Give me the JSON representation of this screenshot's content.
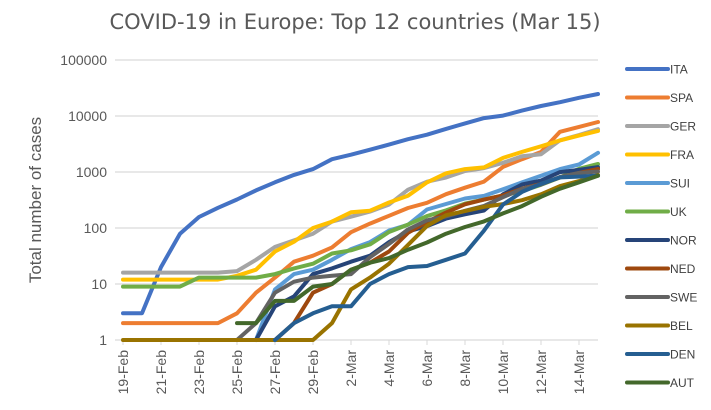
{
  "chart_data": {
    "type": "line",
    "title": "COVID-19 in Europe: Top 12 countries (Mar 15)",
    "xlabel": "",
    "ylabel": "Total number of cases",
    "yscale": "log",
    "ylim": [
      1,
      100000
    ],
    "yticks": [
      "1",
      "10",
      "100",
      "1000",
      "10000",
      "100000"
    ],
    "grid": true,
    "legend": "right",
    "x": [
      "19-Feb",
      "20-Feb",
      "21-Feb",
      "22-Feb",
      "23-Feb",
      "24-Feb",
      "25-Feb",
      "26-Feb",
      "27-Feb",
      "28-Feb",
      "29-Feb",
      "1-Mar",
      "2-Mar",
      "3-Mar",
      "4-Mar",
      "5-Mar",
      "6-Mar",
      "7-Mar",
      "8-Mar",
      "9-Mar",
      "10-Mar",
      "11-Mar",
      "12-Mar",
      "13-Mar",
      "14-Mar",
      "15-Mar"
    ],
    "xtick_labels": [
      "19-Feb",
      "21-Feb",
      "23-Feb",
      "25-Feb",
      "27-Feb",
      "29-Feb",
      "2-Mar",
      "4-Mar",
      "6-Mar",
      "8-Mar",
      "10-Mar",
      "12-Mar",
      "14-Mar"
    ],
    "series": [
      {
        "name": "ITA",
        "color": "#4472C4",
        "values": [
          3,
          3,
          20,
          79,
          157,
          229,
          323,
          470,
          655,
          889,
          1128,
          1694,
          2036,
          2502,
          3089,
          3858,
          4636,
          5883,
          7375,
          9172,
          10149,
          12462,
          15113,
          17660,
          21157,
          24747
        ]
      },
      {
        "name": "SPA",
        "color": "#ED7D31",
        "values": [
          2,
          2,
          2,
          2,
          2,
          2,
          3,
          7,
          13,
          25,
          32,
          45,
          84,
          120,
          165,
          228,
          282,
          401,
          525,
          674,
          1231,
          1695,
          2277,
          5232,
          6391,
          7798
        ]
      },
      {
        "name": "GER",
        "color": "#A5A5A5",
        "values": [
          16,
          16,
          16,
          16,
          16,
          16,
          17,
          27,
          46,
          60,
          79,
          130,
          159,
          196,
          262,
          482,
          670,
          799,
          1040,
          1176,
          1457,
          1908,
          2078,
          3675,
          4585,
          5813
        ]
      },
      {
        "name": "FRA",
        "color": "#FFC000",
        "values": [
          12,
          12,
          12,
          12,
          12,
          12,
          14,
          18,
          38,
          57,
          100,
          130,
          191,
          204,
          285,
          377,
          653,
          949,
          1126,
          1209,
          1784,
          2284,
          2876,
          3661,
          4469,
          5423
        ]
      },
      {
        "name": "SUI",
        "color": "#5B9BD5",
        "values": [
          null,
          null,
          null,
          null,
          null,
          1,
          1,
          1,
          8,
          15,
          18,
          27,
          42,
          56,
          90,
          114,
          214,
          268,
          337,
          374,
          491,
          652,
          858,
          1125,
          1359,
          2200
        ]
      },
      {
        "name": "UK",
        "color": "#70AD47",
        "values": [
          9,
          9,
          9,
          9,
          13,
          13,
          13,
          13,
          15,
          19,
          23,
          35,
          40,
          51,
          85,
          115,
          163,
          206,
          273,
          321,
          382,
          456,
          590,
          798,
          1140,
          1391
        ]
      },
      {
        "name": "NOR",
        "color": "#264478",
        "values": [
          null,
          null,
          null,
          null,
          null,
          null,
          null,
          1,
          4,
          6,
          15,
          19,
          25,
          32,
          56,
          87,
          108,
          147,
          176,
          205,
          400,
          598,
          702,
          996,
          1090,
          1221
        ]
      },
      {
        "name": "NED",
        "color": "#9E480E",
        "values": [
          null,
          null,
          null,
          null,
          null,
          null,
          null,
          null,
          1,
          2,
          7,
          10,
          18,
          24,
          38,
          82,
          128,
          188,
          265,
          321,
          382,
          503,
          614,
          804,
          959,
          1135
        ]
      },
      {
        "name": "SWE",
        "color": "#636363",
        "values": [
          null,
          null,
          null,
          null,
          null,
          null,
          1,
          2,
          7,
          11,
          13,
          14,
          15,
          30,
          52,
          94,
          137,
          161,
          203,
          248,
          355,
          500,
          599,
          814,
          961,
          1022
        ]
      },
      {
        "name": "BEL",
        "color": "#997300",
        "values": [
          1,
          1,
          1,
          1,
          1,
          1,
          1,
          1,
          1,
          1,
          1,
          2,
          8,
          13,
          23,
          50,
          109,
          169,
          200,
          239,
          267,
          314,
          399,
          559,
          689,
          886
        ]
      },
      {
        "name": "DEN",
        "color": "#255E91",
        "values": [
          null,
          null,
          null,
          null,
          null,
          null,
          null,
          null,
          1,
          2,
          3,
          4,
          4,
          10,
          15,
          20,
          21,
          27,
          35,
          90,
          262,
          442,
          615,
          801,
          827,
          864
        ]
      },
      {
        "name": "AUT",
        "color": "#43682B",
        "values": [
          null,
          null,
          null,
          null,
          null,
          null,
          2,
          2,
          5,
          5,
          9,
          10,
          18,
          24,
          29,
          41,
          55,
          79,
          104,
          131,
          182,
          246,
          361,
          504,
          655,
          860
        ]
      }
    ]
  }
}
